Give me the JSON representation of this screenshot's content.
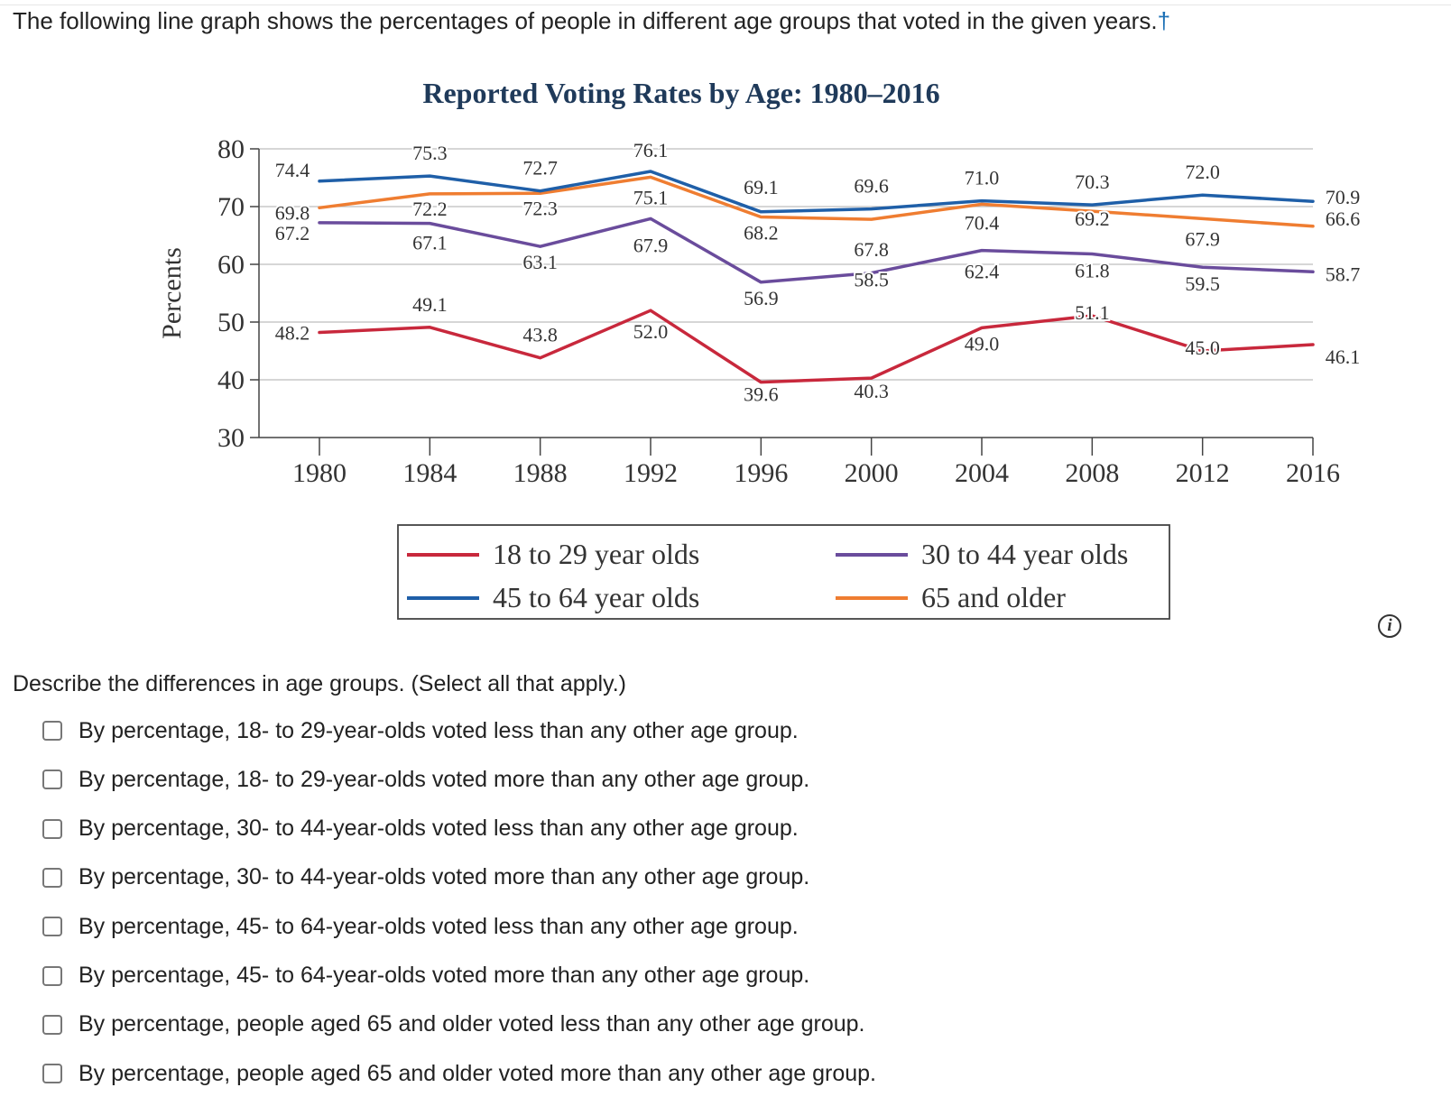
{
  "intro_text": "The following line graph shows the percentages of people in different age groups that voted in the given years.",
  "intro_marker": "†",
  "question": "Describe the differences in age groups. (Select all that apply.)",
  "options": [
    "By percentage, 18- to 29-year-olds voted less than any other age group.",
    "By percentage, 18- to 29-year-olds voted more than any other age group.",
    "By percentage, 30- to 44-year-olds voted less than any other age group.",
    "By percentage, 30- to 44-year-olds voted more than any other age group.",
    "By percentage, 45- to 64-year-olds voted less than any other age group.",
    "By percentage, 45- to 64-year-olds voted more than any other age group.",
    "By percentage, people aged 65 and older voted less than any other age group.",
    "By percentage, people aged 65 and older voted more than any other age group."
  ],
  "info_icon": "i",
  "chart_data": {
    "type": "line",
    "title": "Reported Voting Rates by Age: 1980–2016",
    "ylabel": "Percents",
    "xlabel": "",
    "ylim": [
      30,
      80
    ],
    "yticks": [
      30,
      40,
      50,
      60,
      70,
      80
    ],
    "x": [
      1980,
      1984,
      1988,
      1992,
      1996,
      2000,
      2004,
      2008,
      2012,
      2016
    ],
    "grid": "horizontal",
    "legend_position": "bottom-center",
    "series": [
      {
        "name": "18 to 29 year olds",
        "color": "#c8283c",
        "values": [
          48.2,
          49.1,
          43.8,
          52.0,
          39.6,
          40.3,
          49.0,
          51.1,
          45.0,
          46.1
        ]
      },
      {
        "name": "30 to 44 year olds",
        "color": "#6a4c9c",
        "values": [
          67.2,
          67.1,
          63.1,
          67.9,
          56.9,
          58.5,
          62.4,
          61.8,
          59.5,
          58.7
        ]
      },
      {
        "name": "45 to 64 year olds",
        "color": "#1f5fa8",
        "values": [
          74.4,
          75.3,
          72.7,
          76.1,
          69.1,
          69.6,
          71.0,
          70.3,
          72.0,
          70.9
        ]
      },
      {
        "name": "65 and older",
        "color": "#ef7d31",
        "values": [
          69.8,
          72.2,
          72.3,
          75.1,
          68.2,
          67.8,
          70.4,
          69.2,
          67.9,
          66.6
        ]
      }
    ],
    "data_labels": [
      [
        "48.2",
        "49.1",
        "43.8",
        "52.0",
        "39.6",
        "40.3",
        "49.0",
        "51.1",
        "45.0",
        "46.1"
      ],
      [
        "67.2",
        "67.1",
        "63.1",
        "67.9",
        "56.9",
        "58.5",
        "62.4",
        "61.8",
        "59.5",
        "58.7"
      ],
      [
        "74.4",
        "75.3",
        "72.7",
        "76.1",
        "69.1",
        "69.6",
        "71.0",
        "70.3",
        "72.0",
        "70.9"
      ],
      [
        "69.8",
        "72.2",
        "72.3",
        "75.1",
        "68.2",
        "67.8",
        "70.4",
        "69.2",
        "67.9",
        "66.6"
      ]
    ]
  }
}
